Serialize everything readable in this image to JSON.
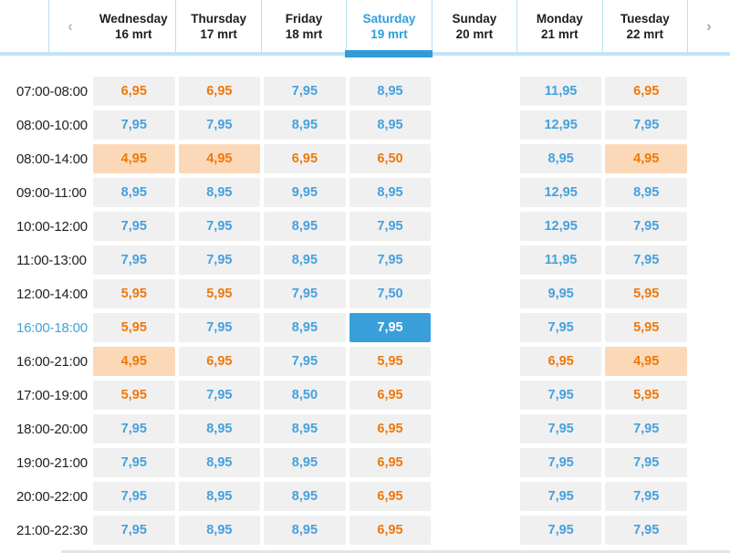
{
  "nav": {
    "prev_icon": "‹",
    "next_icon": "›",
    "days": [
      {
        "name": "Wednesday",
        "date": "16 mrt",
        "selected": false
      },
      {
        "name": "Thursday",
        "date": "17 mrt",
        "selected": false
      },
      {
        "name": "Friday",
        "date": "18 mrt",
        "selected": false
      },
      {
        "name": "Saturday",
        "date": "19 mrt",
        "selected": true
      },
      {
        "name": "Sunday",
        "date": "20 mrt",
        "selected": false
      },
      {
        "name": "Monday",
        "date": "21 mrt",
        "selected": false
      },
      {
        "name": "Tuesday",
        "date": "22 mrt",
        "selected": false
      }
    ]
  },
  "colors": {
    "accent_blue": "#2f9edc",
    "price_blue": "#45a1db",
    "price_orange": "#f0780a",
    "deal_background": "#fad8b8",
    "selected_cell_background": "#399fdb",
    "cell_background": "#f0f0f1",
    "tab_underline": "#c3e4f7"
  },
  "grid": {
    "selected_time_slot": "16:00-18:00",
    "selected_day": "Saturday",
    "rows": [
      {
        "time": "07:00-08:00",
        "cells": [
          {
            "price": "6,95",
            "style": "orange"
          },
          {
            "price": "6,95",
            "style": "orange"
          },
          {
            "price": "7,95",
            "style": "blue"
          },
          {
            "price": "8,95",
            "style": "blue"
          },
          null,
          {
            "price": "11,95",
            "style": "blue"
          },
          {
            "price": "6,95",
            "style": "orange"
          }
        ]
      },
      {
        "time": "08:00-10:00",
        "cells": [
          {
            "price": "7,95",
            "style": "blue"
          },
          {
            "price": "7,95",
            "style": "blue"
          },
          {
            "price": "8,95",
            "style": "blue"
          },
          {
            "price": "8,95",
            "style": "blue"
          },
          null,
          {
            "price": "12,95",
            "style": "blue"
          },
          {
            "price": "7,95",
            "style": "blue"
          }
        ]
      },
      {
        "time": "08:00-14:00",
        "cells": [
          {
            "price": "4,95",
            "style": "deal"
          },
          {
            "price": "4,95",
            "style": "deal"
          },
          {
            "price": "6,95",
            "style": "orange"
          },
          {
            "price": "6,50",
            "style": "orange"
          },
          null,
          {
            "price": "8,95",
            "style": "blue"
          },
          {
            "price": "4,95",
            "style": "deal"
          }
        ]
      },
      {
        "time": "09:00-11:00",
        "cells": [
          {
            "price": "8,95",
            "style": "blue"
          },
          {
            "price": "8,95",
            "style": "blue"
          },
          {
            "price": "9,95",
            "style": "blue"
          },
          {
            "price": "8,95",
            "style": "blue"
          },
          null,
          {
            "price": "12,95",
            "style": "blue"
          },
          {
            "price": "8,95",
            "style": "blue"
          }
        ]
      },
      {
        "time": "10:00-12:00",
        "cells": [
          {
            "price": "7,95",
            "style": "blue"
          },
          {
            "price": "7,95",
            "style": "blue"
          },
          {
            "price": "8,95",
            "style": "blue"
          },
          {
            "price": "7,95",
            "style": "blue"
          },
          null,
          {
            "price": "12,95",
            "style": "blue"
          },
          {
            "price": "7,95",
            "style": "blue"
          }
        ]
      },
      {
        "time": "11:00-13:00",
        "cells": [
          {
            "price": "7,95",
            "style": "blue"
          },
          {
            "price": "7,95",
            "style": "blue"
          },
          {
            "price": "8,95",
            "style": "blue"
          },
          {
            "price": "7,95",
            "style": "blue"
          },
          null,
          {
            "price": "11,95",
            "style": "blue"
          },
          {
            "price": "7,95",
            "style": "blue"
          }
        ]
      },
      {
        "time": "12:00-14:00",
        "cells": [
          {
            "price": "5,95",
            "style": "orange"
          },
          {
            "price": "5,95",
            "style": "orange"
          },
          {
            "price": "7,95",
            "style": "blue"
          },
          {
            "price": "7,50",
            "style": "blue"
          },
          null,
          {
            "price": "9,95",
            "style": "blue"
          },
          {
            "price": "5,95",
            "style": "orange"
          }
        ]
      },
      {
        "time": "16:00-18:00",
        "cells": [
          {
            "price": "5,95",
            "style": "orange"
          },
          {
            "price": "7,95",
            "style": "blue"
          },
          {
            "price": "8,95",
            "style": "blue"
          },
          {
            "price": "7,95",
            "style": "selectedcell"
          },
          null,
          {
            "price": "7,95",
            "style": "blue"
          },
          {
            "price": "5,95",
            "style": "orange"
          }
        ]
      },
      {
        "time": "16:00-21:00",
        "cells": [
          {
            "price": "4,95",
            "style": "deal"
          },
          {
            "price": "6,95",
            "style": "orange"
          },
          {
            "price": "7,95",
            "style": "blue"
          },
          {
            "price": "5,95",
            "style": "orange"
          },
          null,
          {
            "price": "6,95",
            "style": "orange"
          },
          {
            "price": "4,95",
            "style": "deal"
          }
        ]
      },
      {
        "time": "17:00-19:00",
        "cells": [
          {
            "price": "5,95",
            "style": "orange"
          },
          {
            "price": "7,95",
            "style": "blue"
          },
          {
            "price": "8,50",
            "style": "blue"
          },
          {
            "price": "6,95",
            "style": "orange"
          },
          null,
          {
            "price": "7,95",
            "style": "blue"
          },
          {
            "price": "5,95",
            "style": "orange"
          }
        ]
      },
      {
        "time": "18:00-20:00",
        "cells": [
          {
            "price": "7,95",
            "style": "blue"
          },
          {
            "price": "8,95",
            "style": "blue"
          },
          {
            "price": "8,95",
            "style": "blue"
          },
          {
            "price": "6,95",
            "style": "orange"
          },
          null,
          {
            "price": "7,95",
            "style": "blue"
          },
          {
            "price": "7,95",
            "style": "blue"
          }
        ]
      },
      {
        "time": "19:00-21:00",
        "cells": [
          {
            "price": "7,95",
            "style": "blue"
          },
          {
            "price": "8,95",
            "style": "blue"
          },
          {
            "price": "8,95",
            "style": "blue"
          },
          {
            "price": "6,95",
            "style": "orange"
          },
          null,
          {
            "price": "7,95",
            "style": "blue"
          },
          {
            "price": "7,95",
            "style": "blue"
          }
        ]
      },
      {
        "time": "20:00-22:00",
        "cells": [
          {
            "price": "7,95",
            "style": "blue"
          },
          {
            "price": "8,95",
            "style": "blue"
          },
          {
            "price": "8,95",
            "style": "blue"
          },
          {
            "price": "6,95",
            "style": "orange"
          },
          null,
          {
            "price": "7,95",
            "style": "blue"
          },
          {
            "price": "7,95",
            "style": "blue"
          }
        ]
      },
      {
        "time": "21:00-22:30",
        "cells": [
          {
            "price": "7,95",
            "style": "blue"
          },
          {
            "price": "8,95",
            "style": "blue"
          },
          {
            "price": "8,95",
            "style": "blue"
          },
          {
            "price": "6,95",
            "style": "orange"
          },
          null,
          {
            "price": "7,95",
            "style": "blue"
          },
          {
            "price": "7,95",
            "style": "blue"
          }
        ]
      }
    ]
  }
}
